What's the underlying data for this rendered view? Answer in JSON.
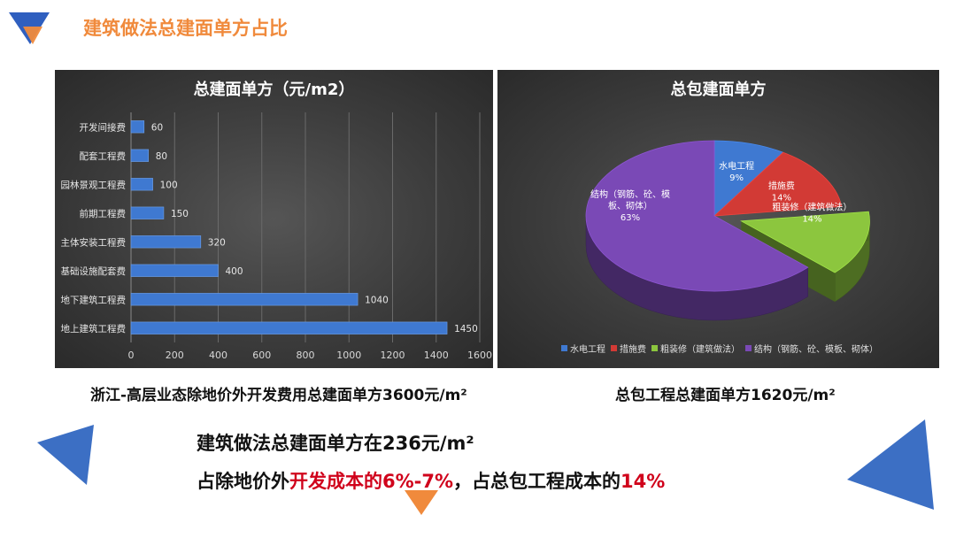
{
  "page": {
    "title": "建筑做法总建面单方占比"
  },
  "colors": {
    "accent": "#f08a3c",
    "blue": "#3c6fc4",
    "highlight": "#d0021b"
  },
  "chart_data": [
    {
      "type": "bar",
      "orientation": "horizontal",
      "title": "总建面单方（元/m2）",
      "categories": [
        "开发间接费",
        "配套工程费",
        "园林景观工程费",
        "前期工程费",
        "主体安装工程费",
        "基础设施配套费",
        "地下建筑工程费",
        "地上建筑工程费"
      ],
      "values": [
        60,
        80,
        100,
        150,
        320,
        400,
        1040,
        1450
      ],
      "xlim": [
        0,
        1600
      ],
      "xticks": [
        "0",
        "200",
        "400",
        "600",
        "800",
        "1000",
        "1200",
        "1400",
        "1600"
      ],
      "grid": true,
      "bar_color": "#3f79d1"
    },
    {
      "type": "pie",
      "style": "3d",
      "title": "总包建面单方",
      "slices": [
        {
          "label": "水电工程",
          "value": 9,
          "pct_label": "9%",
          "label_lines": [
            "水电工程"
          ],
          "color": "#3f79d1"
        },
        {
          "label": "措施费",
          "value": 14,
          "pct_label": "14%",
          "label_lines": [
            "措施费"
          ],
          "color": "#d23a35"
        },
        {
          "label": "粗装修（建筑做法）",
          "value": 14,
          "pct_label": "14%",
          "label_lines": [
            "粗装修（建筑做法）"
          ],
          "color": "#8cc63e"
        },
        {
          "label": "结构（钢筋、砼、模板、砌体）",
          "value": 63,
          "pct_label": "63%",
          "label_lines": [
            "结构（钢筋、砼、模",
            "板、砌体）"
          ],
          "color": "#7a49b6"
        }
      ],
      "legend_position": "bottom"
    }
  ],
  "captions": {
    "left": "浙江-高层业态除地价外开发费用总建面单方3600元/m²",
    "right": "总包工程总建面单方1620元/m²"
  },
  "summary": {
    "line1": "建筑做法总建面单方在236元/m²",
    "line2_a": "占除地价外",
    "line2_b": "开发成本的6%-7%",
    "line2_c": "，占总包工程成本的",
    "line2_d": "14%"
  }
}
